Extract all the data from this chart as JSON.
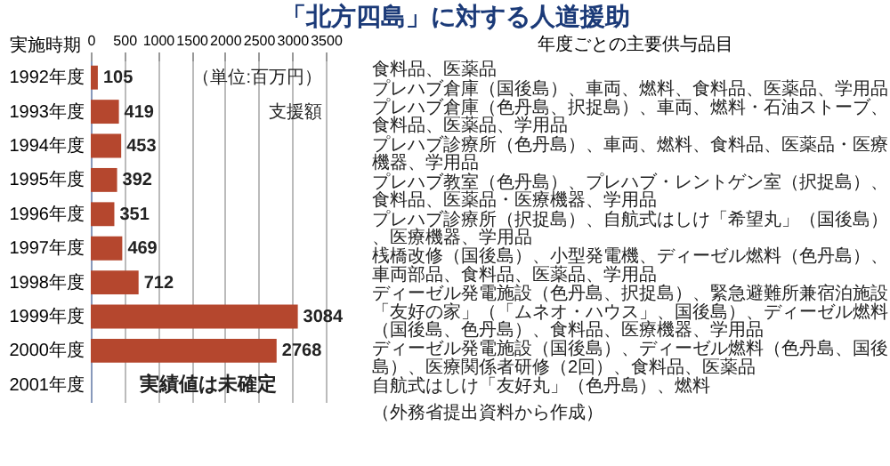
{
  "chart_data": [
    {
      "type": "bar",
      "orientation": "horizontal",
      "title": "「北方四島」に対する人道援助",
      "ylabel": "実施時期",
      "categories": [
        "1992年度",
        "1993年度",
        "1994年度",
        "1995年度",
        "1996年度",
        "1997年度",
        "1998年度",
        "1999年度",
        "2000年度",
        "2001年度"
      ],
      "values": [
        105,
        419,
        453,
        392,
        351,
        469,
        712,
        3084,
        2768,
        null
      ],
      "color": "#b5472e",
      "data_labels": true,
      "xlim": [
        0,
        3500
      ],
      "xticks": [
        0,
        500,
        1000,
        1500,
        2000,
        2500,
        3000,
        3500
      ],
      "grid": "x",
      "annotations": [
        "（単位:百万円）",
        "支援額",
        "実績値は未確定"
      ]
    },
    {
      "type": "other",
      "title": "年度ごとの主要供与品目",
      "annotations": [
        "食料品、医薬品",
        "プレハブ倉庫（国後島）、車両、燃料、食料品、医薬品、学用品",
        "プレハブ倉庫（色丹島、択捉島）、車両、燃料・石油ストーブ、食料品、医薬品、学用品",
        "プレハブ診療所（色丹島）、車両、燃料、食料品、医薬品・医療機器、学用品",
        "プレハブ教室（色丹島）、プレハブ・レントゲン室（択捉島）、食料品、医薬品・医療機器、学用品",
        "プレハブ診療所（択捉島）、自航式はしけ「希望丸」（国後島）、医療機器、学用品",
        "桟橋改修（国後島）、小型発電機、ディーゼル燃料（色丹島）、車両部品、食料品、医薬品、学用品",
        "ディーゼル発電施設（色丹島、択捉島）、緊急避難所兼宿泊施設「友好の家」（「ムネオ・ハウス」、国後島）、ディーゼル燃料（国後島、色丹島）、食料品、医療機器、学用品",
        "ディーゼル発電施設（国後島）、ディーゼル燃料（色丹島、国後島）、医療関係者研修（2回）、食料品、医薬品",
        "自航式はしけ「友好丸」（色丹島）、燃料",
        "（外務省提出資料から作成）"
      ]
    }
  ]
}
